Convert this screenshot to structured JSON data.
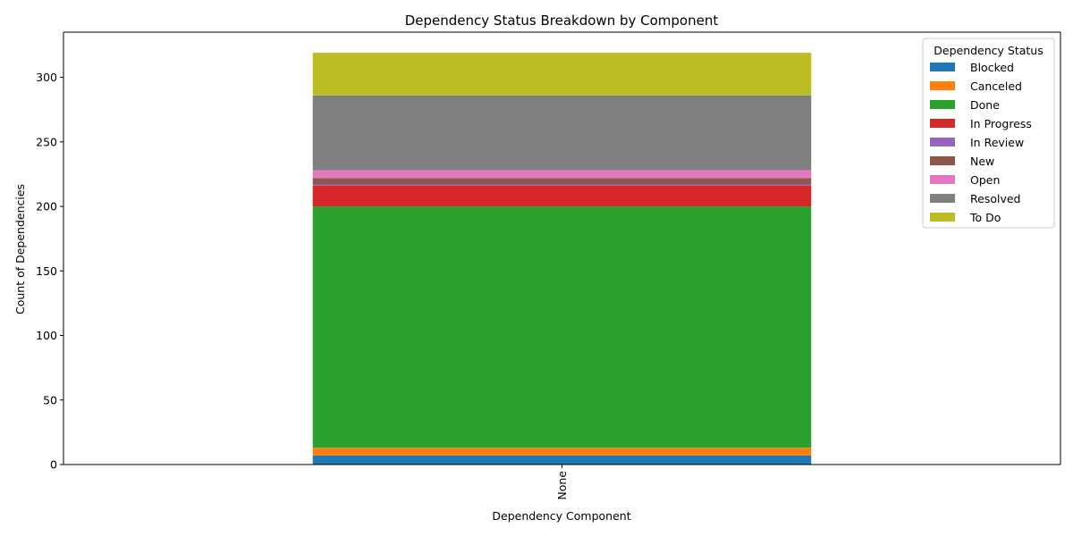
{
  "chart_data": {
    "type": "bar",
    "stacked": true,
    "title": "Dependency Status Breakdown by Component",
    "xlabel": "Dependency Component",
    "ylabel": "Count of Dependencies",
    "categories": [
      "None"
    ],
    "ylim": [
      0,
      335
    ],
    "yticks": [
      0,
      50,
      100,
      150,
      200,
      250,
      300
    ],
    "grid": false,
    "legend": {
      "title": "Dependency Status",
      "placement": "top-right"
    },
    "series": [
      {
        "name": "Blocked",
        "color": "#1f77b4",
        "values": [
          7
        ]
      },
      {
        "name": "Canceled",
        "color": "#ff7f0e",
        "values": [
          6
        ]
      },
      {
        "name": "Done",
        "color": "#2ca02c",
        "values": [
          187
        ]
      },
      {
        "name": "In Progress",
        "color": "#d62728",
        "values": [
          16
        ]
      },
      {
        "name": "In Review",
        "color": "#9467bd",
        "values": [
          1
        ]
      },
      {
        "name": "New",
        "color": "#8c564b",
        "values": [
          5
        ]
      },
      {
        "name": "Open",
        "color": "#e377c2",
        "values": [
          6
        ]
      },
      {
        "name": "Resolved",
        "color": "#7f7f7f",
        "values": [
          58
        ]
      },
      {
        "name": "To Do",
        "color": "#bcbd22",
        "values": [
          33
        ]
      }
    ]
  }
}
